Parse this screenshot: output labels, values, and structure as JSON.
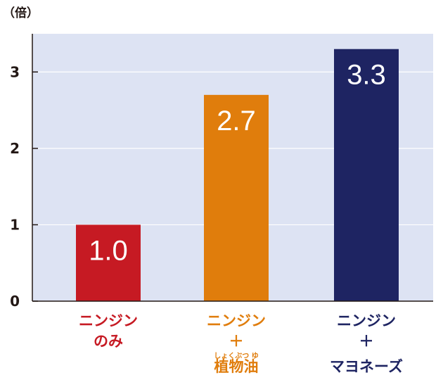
{
  "chart_data": {
    "type": "bar",
    "unit_label": "（倍）",
    "ylim": [
      0,
      3.5
    ],
    "yticks": [
      "0",
      "1",
      "2",
      "3"
    ],
    "grid": true,
    "categories": [
      {
        "lines": [
          "ニンジン",
          "のみ"
        ],
        "ruby": "",
        "color": "#c61a23"
      },
      {
        "lines": [
          "ニンジン",
          "＋",
          "植物油"
        ],
        "ruby": "しょくぶつ ゆ",
        "color": "#e07d0c"
      },
      {
        "lines": [
          "ニンジン",
          "＋",
          "マヨネーズ"
        ],
        "ruby": "",
        "color": "#1e2462"
      }
    ],
    "values": [
      1.0,
      2.7,
      3.3
    ],
    "value_labels": [
      "1.0",
      "2.7",
      "3.3"
    ],
    "colors": {
      "plot_background": "#dde3f3",
      "gridline": "#ffffff",
      "axis": "#231815",
      "bars": [
        "#c61a23",
        "#e07d0c",
        "#1e2462"
      ]
    }
  }
}
